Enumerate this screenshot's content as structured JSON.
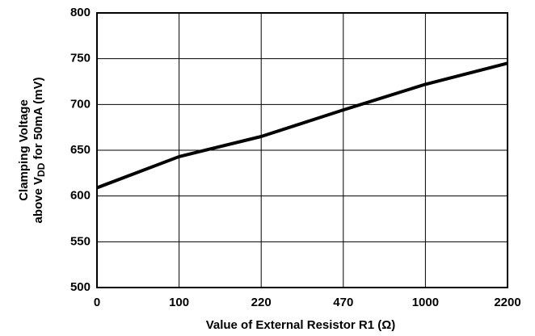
{
  "chart_data": {
    "type": "line",
    "y_label": {
      "line1": "Clamping Voltage",
      "line2_start": "above V",
      "line2_sub": "DD",
      "line2_end": " for 50mA (mV)"
    },
    "x_label": "Value of External Resistor R1 (Ω)",
    "categories": [
      "0",
      "100",
      "220",
      "470",
      "1000",
      "2200"
    ],
    "values": [
      609,
      643,
      665,
      694,
      722,
      745
    ],
    "color": "#000000",
    "ylim": [
      500,
      800
    ],
    "yticks": [
      500,
      550,
      600,
      650,
      700,
      750,
      800
    ],
    "grid": true
  }
}
